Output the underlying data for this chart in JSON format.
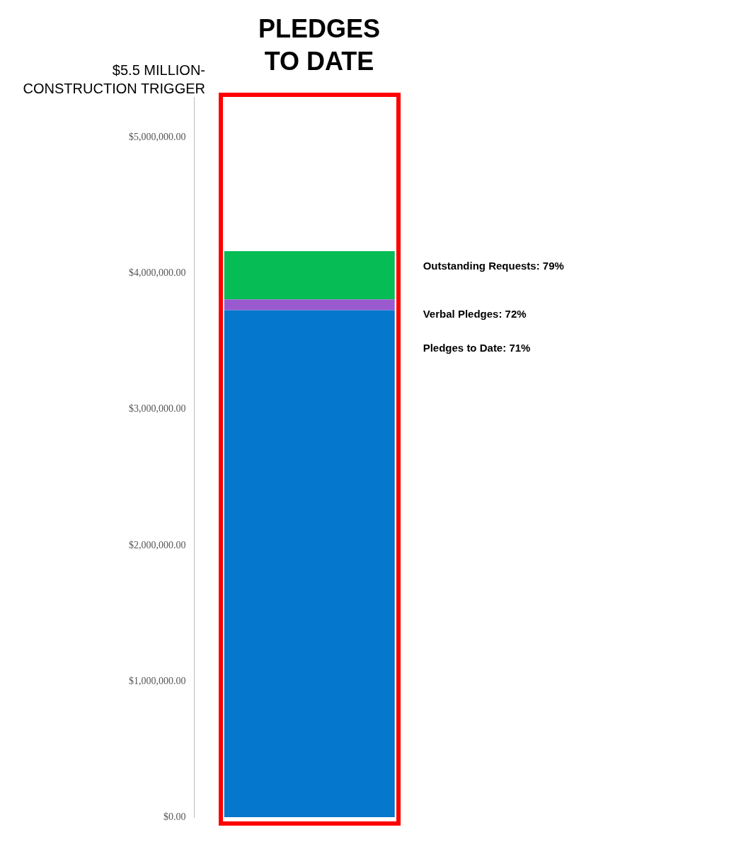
{
  "chart_data": {
    "type": "bar",
    "title": "PLEDGES TO DATE",
    "annotations": [
      "$5.5 MILLION-CONSTRUCTION TRIGGER"
    ],
    "categories": [
      null
    ],
    "stacked": true,
    "series": [
      {
        "name": "Pledges to Date: 71%",
        "color": "#0577cc",
        "values": [
          3730000
        ]
      },
      {
        "name": "Verbal Pledges: 72%",
        "color": "#9b59d0",
        "values": [
          80000
        ]
      },
      {
        "name": "Outstanding Requests: 79%",
        "color": "#05bc55",
        "values": [
          355000
        ]
      }
    ],
    "ylim": [
      0,
      5300000
    ],
    "yticks": [
      {
        "value": 0,
        "label": "$0.00"
      },
      {
        "value": 1000000,
        "label": "$1,000,000.00"
      },
      {
        "value": 2000000,
        "label": "$2,000,000.00"
      },
      {
        "value": 3000000,
        "label": "$3,000,000.00"
      },
      {
        "value": 4000000,
        "label": "$4,000,000.00"
      },
      {
        "value": 5000000,
        "label": "$5,000,000.00"
      }
    ],
    "grid": false,
    "legend": false
  }
}
